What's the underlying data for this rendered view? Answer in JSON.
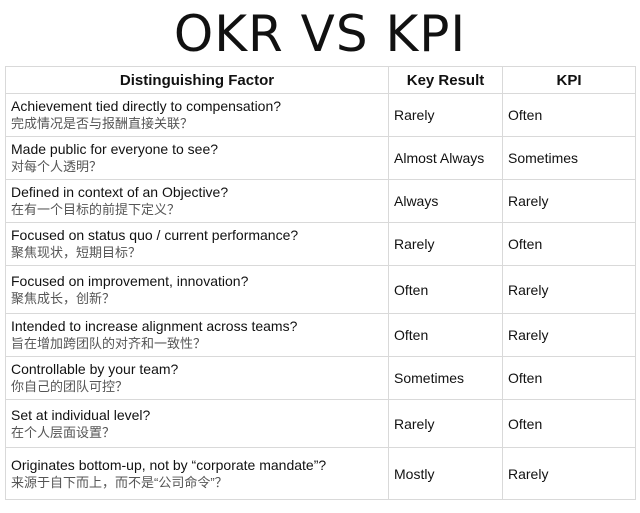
{
  "title": "OKR VS KPI",
  "table": {
    "headers": [
      "Distinguishing Factor",
      "Key Result",
      "KPI"
    ],
    "rows": [
      {
        "factor_en": "Achievement tied directly to compensation?",
        "factor_zh": "完成情况是否与报酬直接关联？",
        "key_result": "Rarely",
        "kpi": "Often"
      },
      {
        "factor_en": "Made public for everyone to see?",
        "factor_zh": "对每个人透明？",
        "key_result": "Almost Always",
        "kpi": "Sometimes"
      },
      {
        "factor_en": "Defined in context of an Objective?",
        "factor_zh": "在有一个目标的前提下定义？",
        "key_result": "Always",
        "kpi": "Rarely"
      },
      {
        "factor_en": "Focused on status quo / current performance?",
        "factor_zh": "聚焦现状，短期目标？",
        "key_result": "Rarely",
        "kpi": "Often"
      },
      {
        "factor_en": "Focused on improvement, innovation?",
        "factor_zh": "聚焦成长，创新？",
        "key_result": "Often",
        "kpi": "Rarely"
      },
      {
        "factor_en": "Intended to increase alignment across teams?",
        "factor_zh": "旨在增加跨团队的对齐和一致性？",
        "key_result": "Often",
        "kpi": "Rarely"
      },
      {
        "factor_en": "Controllable by your team?",
        "factor_zh": "你自己的团队可控？",
        "key_result": "Sometimes",
        "kpi": "Often"
      },
      {
        "factor_en": "Set at individual level?",
        "factor_zh": "在个人层面设置？",
        "key_result": "Rarely",
        "kpi": "Often"
      },
      {
        "factor_en": "Originates bottom-up, not by “corporate mandate”?",
        "factor_zh": "来源于自下而上，而不是“公司命令”？",
        "key_result": "Mostly",
        "kpi": "Rarely"
      }
    ]
  }
}
